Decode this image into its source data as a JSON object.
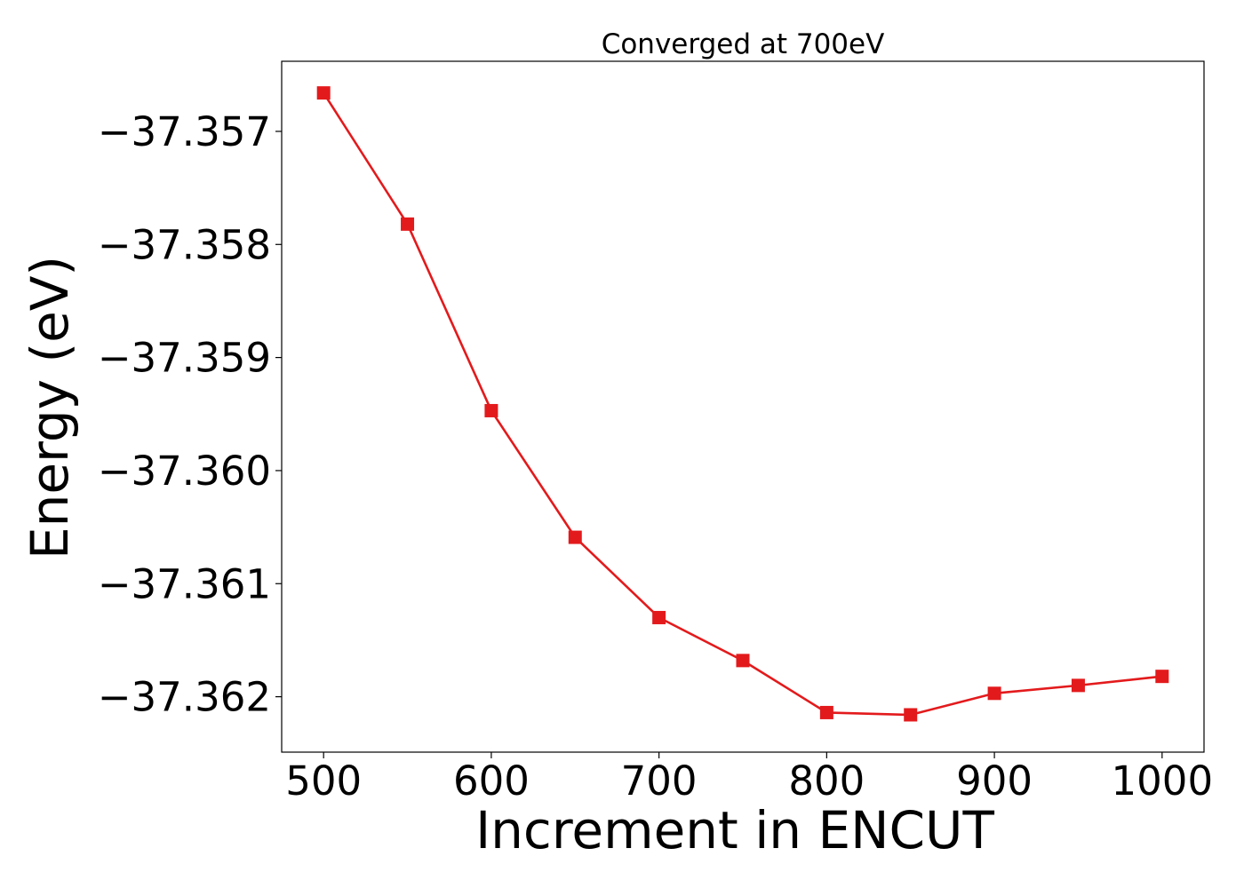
{
  "chart_data": {
    "type": "line",
    "title": "Converged at 700eV",
    "xlabel": "Increment in ENCUT",
    "ylabel": "Energy (eV)",
    "x": [
      500,
      550,
      600,
      650,
      700,
      750,
      800,
      850,
      900,
      950,
      1000
    ],
    "series": [
      {
        "values": [
          -37.35666,
          -37.35782,
          -37.35947,
          -37.36059,
          -37.3613,
          -37.36168,
          -37.36214,
          -37.36216,
          -37.36197,
          -37.3619,
          -37.36182
        ],
        "color": "#e31a1c",
        "marker": "square"
      }
    ],
    "xticks": [
      500,
      600,
      700,
      800,
      900,
      1000
    ],
    "xtick_labels": [
      "500",
      "600",
      "700",
      "800",
      "900",
      "1000"
    ],
    "yticks": [
      -37.357,
      -37.358,
      -37.359,
      -37.36,
      -37.361,
      -37.362
    ],
    "ytick_labels": [
      "−37.357",
      "−37.358",
      "−37.359",
      "−37.360",
      "−37.361",
      "−37.362"
    ],
    "xlim": [
      475,
      1025
    ],
    "ylim": [
      -37.36249,
      -37.35638
    ],
    "grid": false,
    "legend": "none"
  }
}
